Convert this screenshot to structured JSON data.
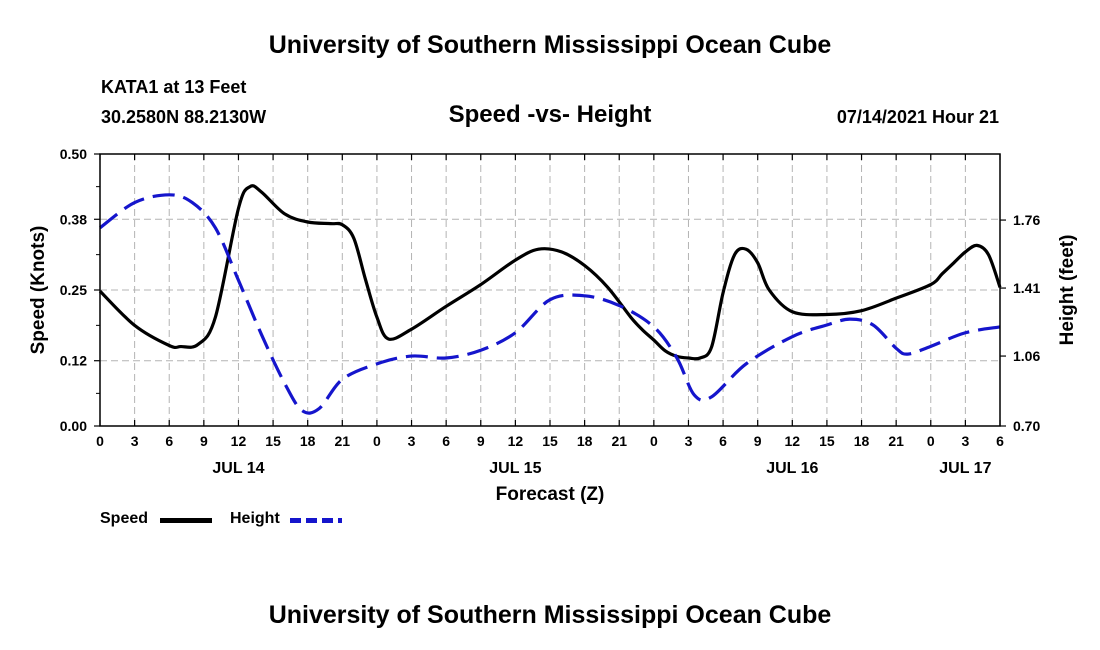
{
  "header": {
    "title": "University of Southern Mississippi Ocean Cube",
    "station": "KATA1 at 13 Feet",
    "coords": "30.2580N  88.2130W",
    "chart_title": "Speed -vs- Height",
    "timestamp": "07/14/2021 Hour 21"
  },
  "footer": {
    "title": "University of Southern Mississippi Ocean Cube"
  },
  "legend": {
    "speed_label": "Speed",
    "height_label": "Height"
  },
  "colors": {
    "speed": "#000000",
    "height": "#1515cc",
    "grid": "#b4b4b4"
  },
  "chart_data": {
    "type": "line",
    "title": "Speed -vs- Height",
    "xlabel": "Forecast (Z)",
    "ylabel": "Speed (Knots)",
    "y2label": "Height (feet)",
    "x_range_hours": [
      0,
      78
    ],
    "x_ticks": [
      {
        "h": 0,
        "label": "0"
      },
      {
        "h": 3,
        "label": "3"
      },
      {
        "h": 6,
        "label": "6"
      },
      {
        "h": 9,
        "label": "9"
      },
      {
        "h": 12,
        "label": "12"
      },
      {
        "h": 15,
        "label": "15"
      },
      {
        "h": 18,
        "label": "18"
      },
      {
        "h": 21,
        "label": "21"
      },
      {
        "h": 24,
        "label": "0"
      },
      {
        "h": 27,
        "label": "3"
      },
      {
        "h": 30,
        "label": "6"
      },
      {
        "h": 33,
        "label": "9"
      },
      {
        "h": 36,
        "label": "12"
      },
      {
        "h": 39,
        "label": "15"
      },
      {
        "h": 42,
        "label": "18"
      },
      {
        "h": 45,
        "label": "21"
      },
      {
        "h": 48,
        "label": "0"
      },
      {
        "h": 51,
        "label": "3"
      },
      {
        "h": 54,
        "label": "6"
      },
      {
        "h": 57,
        "label": "9"
      },
      {
        "h": 60,
        "label": "12"
      },
      {
        "h": 63,
        "label": "15"
      },
      {
        "h": 66,
        "label": "18"
      },
      {
        "h": 69,
        "label": "21"
      },
      {
        "h": 72,
        "label": "0"
      },
      {
        "h": 75,
        "label": "3"
      },
      {
        "h": 78,
        "label": "6"
      }
    ],
    "day_labels": [
      {
        "h": 12,
        "label": "JUL 14"
      },
      {
        "h": 36,
        "label": "JUL 15"
      },
      {
        "h": 60,
        "label": "JUL 16"
      },
      {
        "h": 75,
        "label": "JUL 17"
      }
    ],
    "y_left": {
      "range": [
        0,
        0.5
      ],
      "ticks": [
        "0.00",
        "0.12",
        "0.25",
        "0.38",
        "0.50"
      ]
    },
    "y_right": {
      "range": [
        0.7,
        2.1
      ],
      "ticks": [
        "0.70",
        "1.06",
        "1.41",
        "1.76"
      ]
    },
    "series": [
      {
        "name": "Speed",
        "axis": "left",
        "style": "solid",
        "x": [
          0,
          3,
          6,
          7,
          8.5,
          10,
          12,
          13,
          14,
          16,
          18,
          20,
          21,
          22,
          23,
          24,
          25,
          27,
          30,
          33,
          36,
          38,
          40,
          42,
          44,
          46,
          47,
          48,
          49,
          50,
          51,
          52,
          53,
          54,
          55,
          56,
          57,
          58,
          60,
          63,
          66,
          69,
          72,
          73,
          74,
          75,
          76,
          77,
          78
        ],
        "values": [
          0.248,
          0.185,
          0.148,
          0.146,
          0.15,
          0.2,
          0.4,
          0.44,
          0.43,
          0.39,
          0.375,
          0.372,
          0.37,
          0.345,
          0.27,
          0.2,
          0.16,
          0.178,
          0.22,
          0.26,
          0.305,
          0.325,
          0.32,
          0.295,
          0.255,
          0.2,
          0.177,
          0.158,
          0.138,
          0.128,
          0.125,
          0.125,
          0.145,
          0.245,
          0.315,
          0.325,
          0.3,
          0.25,
          0.21,
          0.205,
          0.212,
          0.235,
          0.26,
          0.28,
          0.3,
          0.32,
          0.332,
          0.315,
          0.255
        ]
      },
      {
        "name": "Height",
        "axis": "right",
        "style": "dashed",
        "x": [
          0,
          3,
          6,
          8,
          10,
          12,
          14,
          16,
          17.5,
          19,
          21,
          24,
          27,
          30,
          33,
          36,
          39,
          42,
          45,
          48,
          50,
          51.5,
          53,
          56,
          60,
          63,
          65,
          67,
          69,
          70,
          72,
          75,
          78
        ],
        "values": [
          1.72,
          1.85,
          1.89,
          1.85,
          1.72,
          1.45,
          1.17,
          0.92,
          0.78,
          0.79,
          0.94,
          1.02,
          1.06,
          1.05,
          1.09,
          1.18,
          1.35,
          1.37,
          1.32,
          1.21,
          1.05,
          0.86,
          0.85,
          1.02,
          1.16,
          1.22,
          1.25,
          1.22,
          1.1,
          1.07,
          1.11,
          1.18,
          1.21
        ]
      }
    ]
  }
}
